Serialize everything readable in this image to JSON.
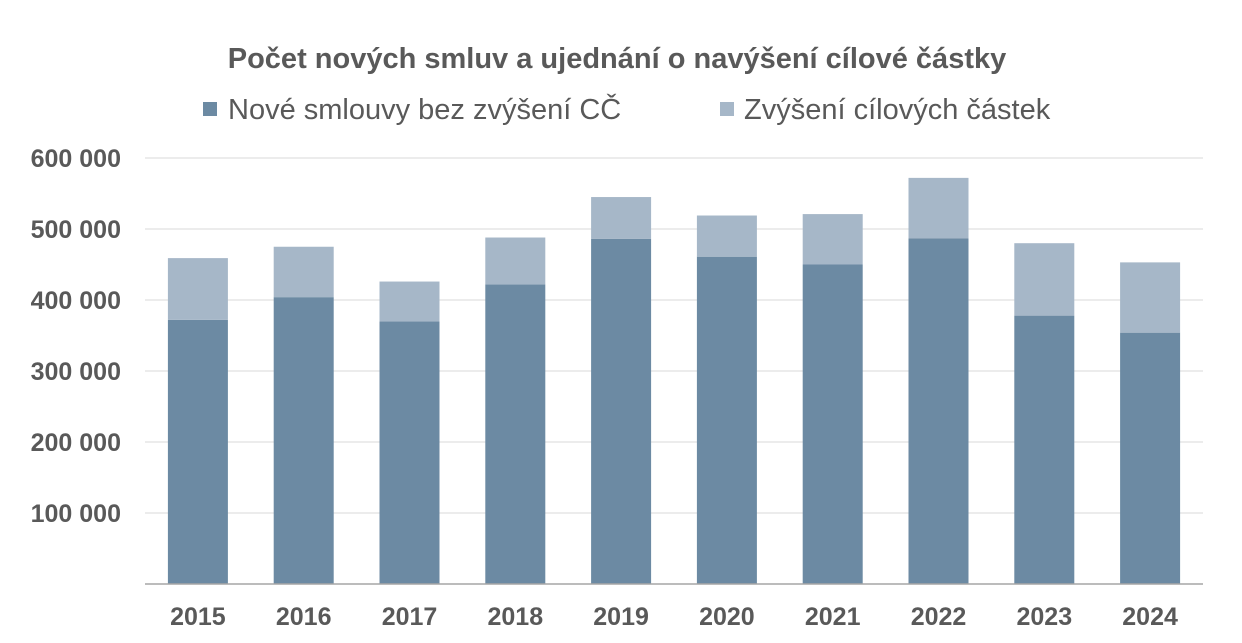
{
  "chart_data": {
    "type": "bar",
    "stacked": true,
    "title": "Počet nových smluv a ujednání o navýšení cílové částky",
    "xlabel": "",
    "ylabel": "",
    "categories": [
      "2015",
      "2016",
      "2017",
      "2018",
      "2019",
      "2020",
      "2021",
      "2022",
      "2023",
      "2024"
    ],
    "series": [
      {
        "name": "Nové smlouvy bez zvýšení CČ",
        "color": "#6c8aa3",
        "values": [
          372000,
          404000,
          370000,
          422000,
          486000,
          461000,
          450000,
          487000,
          378000,
          354000
        ]
      },
      {
        "name": "Zvýšení cílových částek",
        "color": "#a6b7c8",
        "values": [
          87000,
          71000,
          56000,
          66000,
          59000,
          58000,
          71000,
          85000,
          102000,
          99000
        ]
      }
    ],
    "ylim": [
      0,
      600000
    ],
    "yticks": [
      "100 000",
      "200 000",
      "300 000",
      "400 000",
      "500 000",
      "600 000"
    ],
    "ytick_values": [
      100000,
      200000,
      300000,
      400000,
      500000,
      600000
    ],
    "grid": true,
    "legend_position": "top"
  }
}
